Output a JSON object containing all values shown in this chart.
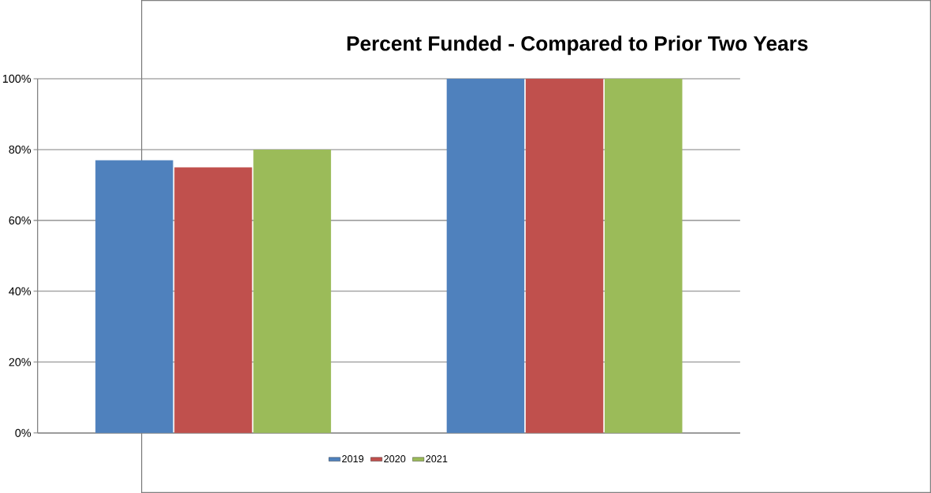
{
  "chart_data": {
    "type": "bar",
    "title": "Percent Funded - Compared to Prior Two Years",
    "categories": [
      null,
      null
    ],
    "series": [
      {
        "name": "2019",
        "color": "#4f81bd",
        "values": [
          77,
          100
        ]
      },
      {
        "name": "2020",
        "color": "#c0504d",
        "values": [
          75,
          100
        ]
      },
      {
        "name": "2021",
        "color": "#9bbb59",
        "values": [
          80,
          100
        ]
      }
    ],
    "ylim": [
      0,
      100
    ],
    "yticks": [
      {
        "value": 0,
        "label": "0%"
      },
      {
        "value": 20,
        "label": "20%"
      },
      {
        "value": 40,
        "label": "40%"
      },
      {
        "value": 60,
        "label": "60%"
      },
      {
        "value": 80,
        "label": "80%"
      },
      {
        "value": 100,
        "label": "100%"
      }
    ],
    "grid": "y",
    "legend": "bottom"
  }
}
